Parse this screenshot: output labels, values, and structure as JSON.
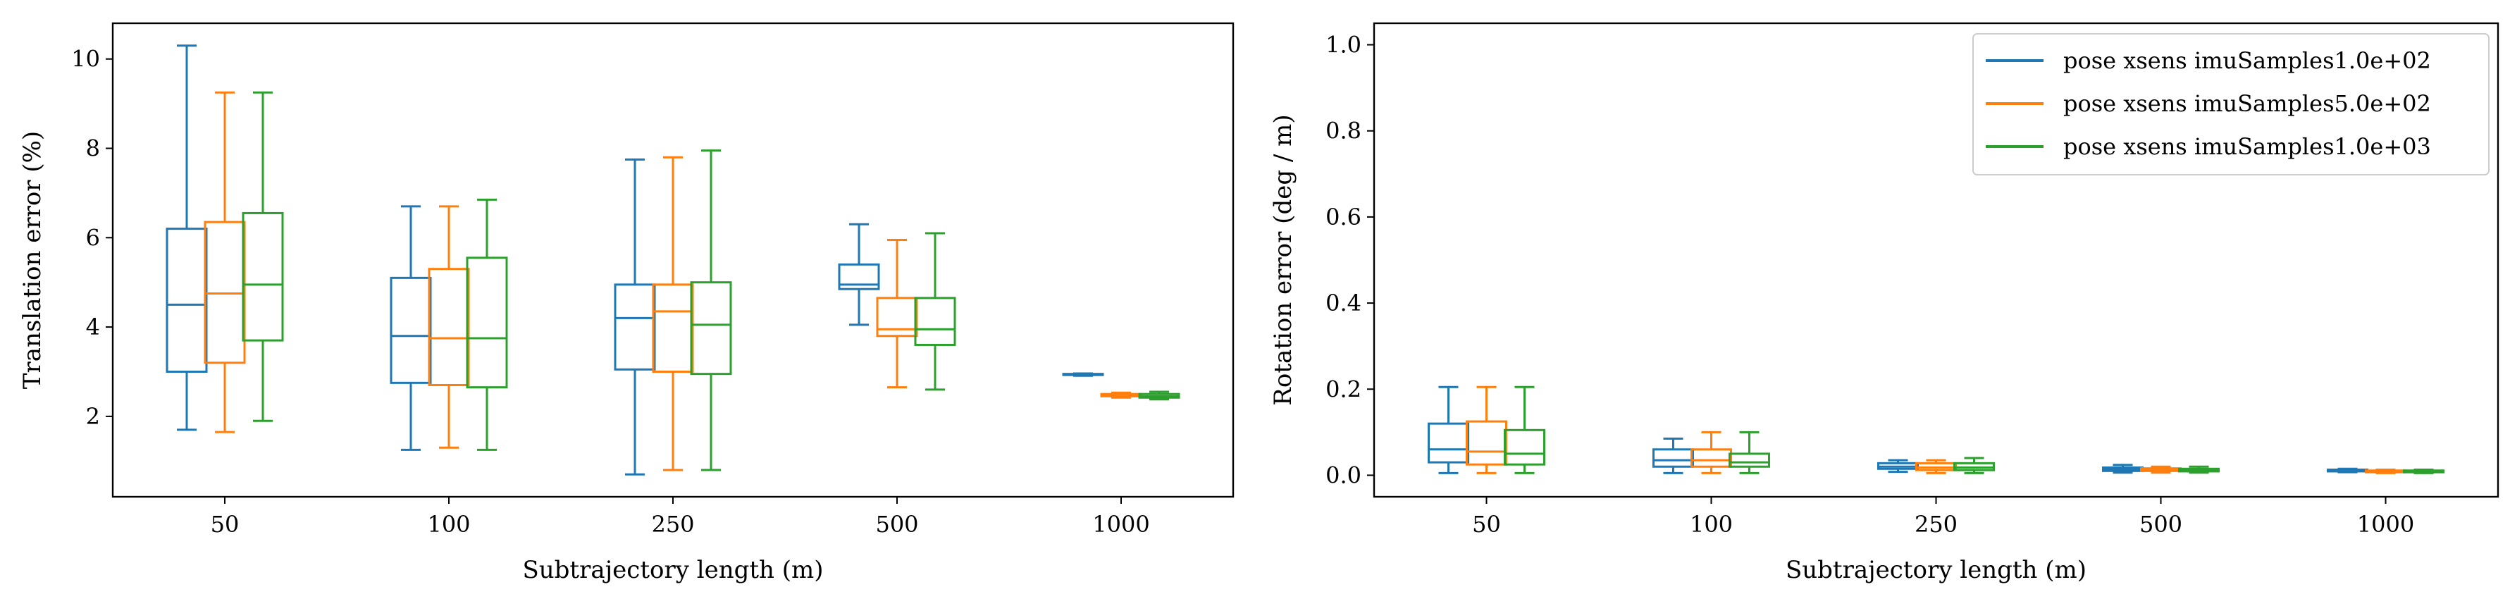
{
  "series_colors": [
    "#1f77b4",
    "#ff7f0e",
    "#2ca02c"
  ],
  "legend": {
    "labels": [
      "pose xsens imuSamples1.0e+02",
      "pose xsens imuSamples5.0e+02",
      "pose xsens imuSamples1.0e+03"
    ]
  },
  "chart_data": [
    {
      "type": "box",
      "xlabel": "Subtrajectory length (m)",
      "ylabel": "Translation error (%)",
      "categories": [
        "50",
        "100",
        "250",
        "500",
        "1000"
      ],
      "ylim": [
        0.2,
        10.8
      ],
      "yticks": [
        2,
        4,
        6,
        8,
        10
      ],
      "series": [
        {
          "name": "pose xsens imuSamples1.0e+02",
          "boxes": [
            {
              "whislo": 1.7,
              "q1": 3.0,
              "med": 4.5,
              "q3": 6.2,
              "whishi": 10.3
            },
            {
              "whislo": 1.25,
              "q1": 2.75,
              "med": 3.8,
              "q3": 5.1,
              "whishi": 6.7
            },
            {
              "whislo": 0.7,
              "q1": 3.05,
              "med": 4.2,
              "q3": 4.95,
              "whishi": 7.75
            },
            {
              "whislo": 4.05,
              "q1": 4.85,
              "med": 4.95,
              "q3": 5.4,
              "whishi": 6.3
            },
            {
              "whislo": 2.91,
              "q1": 2.93,
              "med": 2.94,
              "q3": 2.95,
              "whishi": 2.96
            }
          ]
        },
        {
          "name": "pose xsens imuSamples5.0e+02",
          "boxes": [
            {
              "whislo": 1.65,
              "q1": 3.2,
              "med": 4.75,
              "q3": 6.35,
              "whishi": 9.25
            },
            {
              "whislo": 1.3,
              "q1": 2.7,
              "med": 3.75,
              "q3": 5.3,
              "whishi": 6.7
            },
            {
              "whislo": 0.8,
              "q1": 3.0,
              "med": 4.35,
              "q3": 4.95,
              "whishi": 7.8
            },
            {
              "whislo": 2.65,
              "q1": 3.8,
              "med": 3.95,
              "q3": 4.65,
              "whishi": 5.95
            },
            {
              "whislo": 2.42,
              "q1": 2.45,
              "med": 2.47,
              "q3": 2.5,
              "whishi": 2.53
            }
          ]
        },
        {
          "name": "pose xsens imuSamples1.0e+03",
          "boxes": [
            {
              "whislo": 1.9,
              "q1": 3.7,
              "med": 4.95,
              "q3": 6.55,
              "whishi": 9.25
            },
            {
              "whislo": 1.25,
              "q1": 2.65,
              "med": 3.75,
              "q3": 5.55,
              "whishi": 6.85
            },
            {
              "whislo": 0.8,
              "q1": 2.95,
              "med": 4.05,
              "q3": 5.0,
              "whishi": 7.95
            },
            {
              "whislo": 2.6,
              "q1": 3.6,
              "med": 3.95,
              "q3": 4.65,
              "whishi": 6.1
            },
            {
              "whislo": 2.38,
              "q1": 2.42,
              "med": 2.45,
              "q3": 2.5,
              "whishi": 2.55
            }
          ]
        }
      ]
    },
    {
      "type": "box",
      "xlabel": "Subtrajectory length (m)",
      "ylabel": "Rotation error (deg / m)",
      "categories": [
        "50",
        "100",
        "250",
        "500",
        "1000"
      ],
      "ylim": [
        -0.05,
        1.05
      ],
      "yticks": [
        "0.0",
        "0.2",
        "0.4",
        "0.6",
        "0.8",
        "1.0"
      ],
      "legend_position": "top-right",
      "series": [
        {
          "name": "pose xsens imuSamples1.0e+02",
          "boxes": [
            {
              "whislo": 0.005,
              "q1": 0.03,
              "med": 0.06,
              "q3": 0.12,
              "whishi": 0.205
            },
            {
              "whislo": 0.005,
              "q1": 0.02,
              "med": 0.035,
              "q3": 0.06,
              "whishi": 0.085
            },
            {
              "whislo": 0.008,
              "q1": 0.015,
              "med": 0.02,
              "q3": 0.028,
              "whishi": 0.035
            },
            {
              "whislo": 0.006,
              "q1": 0.01,
              "med": 0.014,
              "q3": 0.018,
              "whishi": 0.024
            },
            {
              "whislo": 0.007,
              "q1": 0.009,
              "med": 0.011,
              "q3": 0.013,
              "whishi": 0.015
            }
          ]
        },
        {
          "name": "pose xsens imuSamples5.0e+02",
          "boxes": [
            {
              "whislo": 0.005,
              "q1": 0.025,
              "med": 0.055,
              "q3": 0.125,
              "whishi": 0.205
            },
            {
              "whislo": 0.005,
              "q1": 0.02,
              "med": 0.035,
              "q3": 0.06,
              "whishi": 0.1
            },
            {
              "whislo": 0.005,
              "q1": 0.012,
              "med": 0.018,
              "q3": 0.028,
              "whishi": 0.035
            },
            {
              "whislo": 0.006,
              "q1": 0.01,
              "med": 0.013,
              "q3": 0.016,
              "whishi": 0.02
            },
            {
              "whislo": 0.005,
              "q1": 0.007,
              "med": 0.009,
              "q3": 0.011,
              "whishi": 0.013
            }
          ]
        },
        {
          "name": "pose xsens imuSamples1.0e+03",
          "boxes": [
            {
              "whislo": 0.005,
              "q1": 0.025,
              "med": 0.05,
              "q3": 0.105,
              "whishi": 0.205
            },
            {
              "whislo": 0.005,
              "q1": 0.02,
              "med": 0.03,
              "q3": 0.05,
              "whishi": 0.1
            },
            {
              "whislo": 0.005,
              "q1": 0.012,
              "med": 0.018,
              "q3": 0.028,
              "whishi": 0.04
            },
            {
              "whislo": 0.006,
              "q1": 0.009,
              "med": 0.012,
              "q3": 0.015,
              "whishi": 0.02
            },
            {
              "whislo": 0.005,
              "q1": 0.007,
              "med": 0.009,
              "q3": 0.011,
              "whishi": 0.013
            }
          ]
        }
      ]
    }
  ]
}
